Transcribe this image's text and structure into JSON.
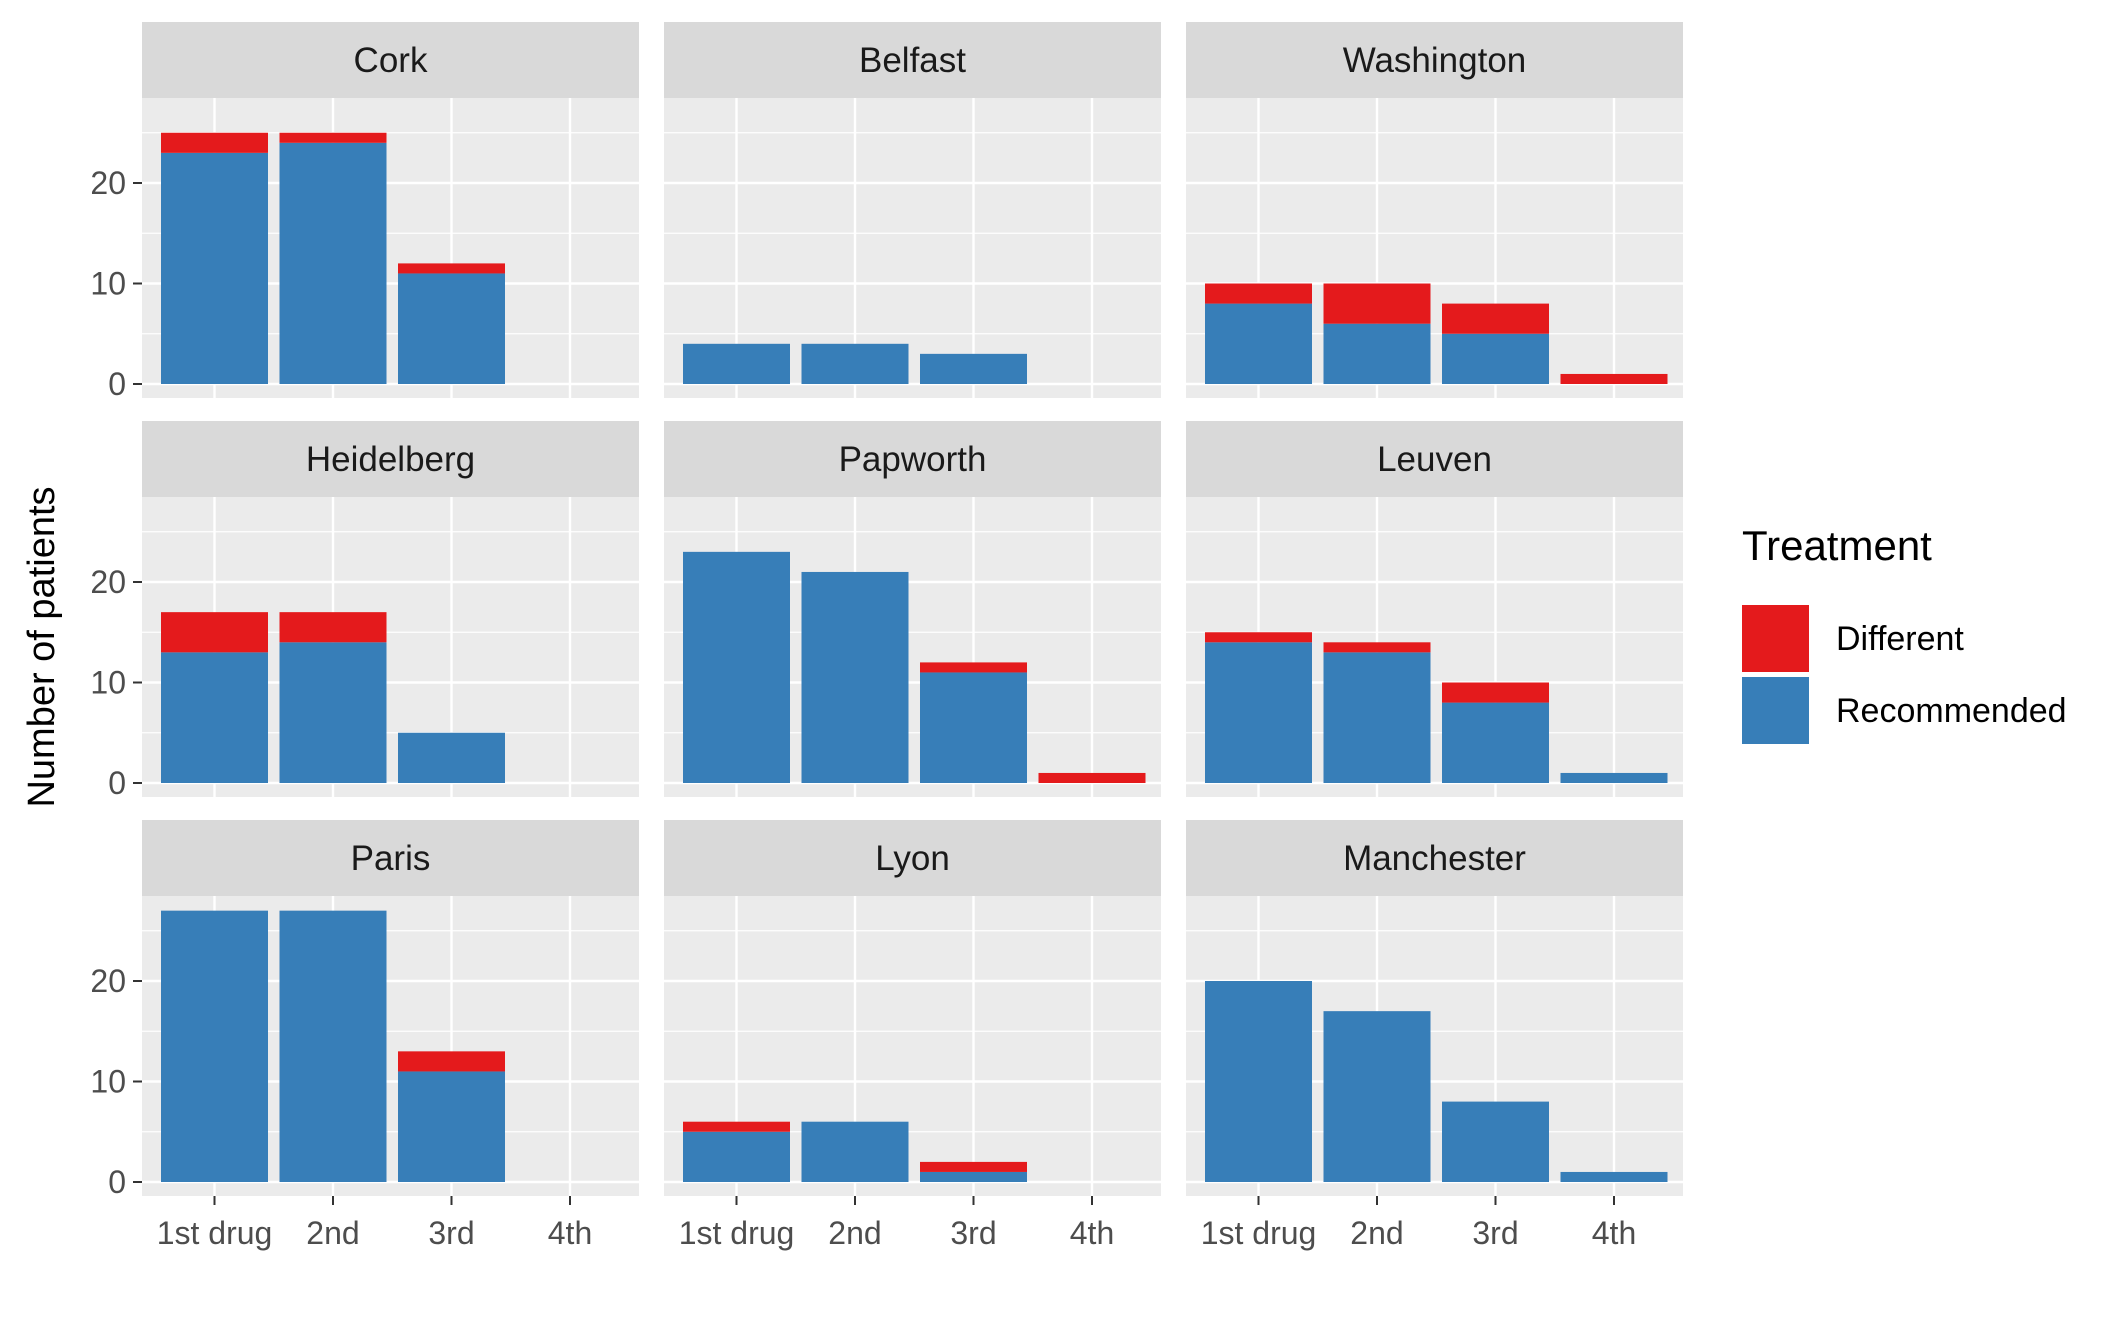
{
  "chart_data": {
    "type": "bar",
    "stacked": true,
    "faceted": true,
    "ylabel": "Number of patients",
    "xlabel": "",
    "categories": [
      "1st drug",
      "2nd",
      "3rd",
      "4th"
    ],
    "ylim": [
      0,
      27
    ],
    "yticks": [
      0,
      10,
      20
    ],
    "grid": true,
    "legend": {
      "title": "Treatment",
      "position": "right",
      "entries": [
        {
          "name": "Different",
          "color": "#E41A1C"
        },
        {
          "name": "Recommended",
          "color": "#377EB8"
        }
      ]
    },
    "colors": {
      "Recommended": "#377EB8",
      "Different": "#E41A1C",
      "panel_bg": "#EBEBEB",
      "strip_bg": "#D9D9D9",
      "gridline": "#FFFFFF"
    },
    "facets": [
      {
        "name": "Cork",
        "series": [
          {
            "name": "Recommended",
            "values": [
              23,
              24,
              11,
              0
            ]
          },
          {
            "name": "Different",
            "values": [
              2,
              1,
              1,
              0
            ]
          }
        ]
      },
      {
        "name": "Belfast",
        "series": [
          {
            "name": "Recommended",
            "values": [
              4,
              4,
              3,
              0
            ]
          },
          {
            "name": "Different",
            "values": [
              0,
              0,
              0,
              0
            ]
          }
        ]
      },
      {
        "name": "Washington",
        "series": [
          {
            "name": "Recommended",
            "values": [
              8,
              6,
              5,
              0
            ]
          },
          {
            "name": "Different",
            "values": [
              2,
              4,
              3,
              1
            ]
          }
        ]
      },
      {
        "name": "Heidelberg",
        "series": [
          {
            "name": "Recommended",
            "values": [
              13,
              14,
              5,
              0
            ]
          },
          {
            "name": "Different",
            "values": [
              4,
              3,
              0,
              0
            ]
          }
        ]
      },
      {
        "name": "Papworth",
        "series": [
          {
            "name": "Recommended",
            "values": [
              23,
              21,
              11,
              0
            ]
          },
          {
            "name": "Different",
            "values": [
              0,
              0,
              1,
              1
            ]
          }
        ]
      },
      {
        "name": "Leuven",
        "series": [
          {
            "name": "Recommended",
            "values": [
              14,
              13,
              8,
              1
            ]
          },
          {
            "name": "Different",
            "values": [
              1,
              1,
              2,
              0
            ]
          }
        ]
      },
      {
        "name": "Paris",
        "series": [
          {
            "name": "Recommended",
            "values": [
              27,
              27,
              11,
              0
            ]
          },
          {
            "name": "Different",
            "values": [
              0,
              0,
              2,
              0
            ]
          }
        ]
      },
      {
        "name": "Lyon",
        "series": [
          {
            "name": "Recommended",
            "values": [
              5,
              6,
              1,
              0
            ]
          },
          {
            "name": "Different",
            "values": [
              1,
              0,
              1,
              0
            ]
          }
        ]
      },
      {
        "name": "Manchester",
        "series": [
          {
            "name": "Recommended",
            "values": [
              20,
              17,
              8,
              1
            ]
          },
          {
            "name": "Different",
            "values": [
              0,
              0,
              0,
              0
            ]
          }
        ]
      }
    ]
  }
}
